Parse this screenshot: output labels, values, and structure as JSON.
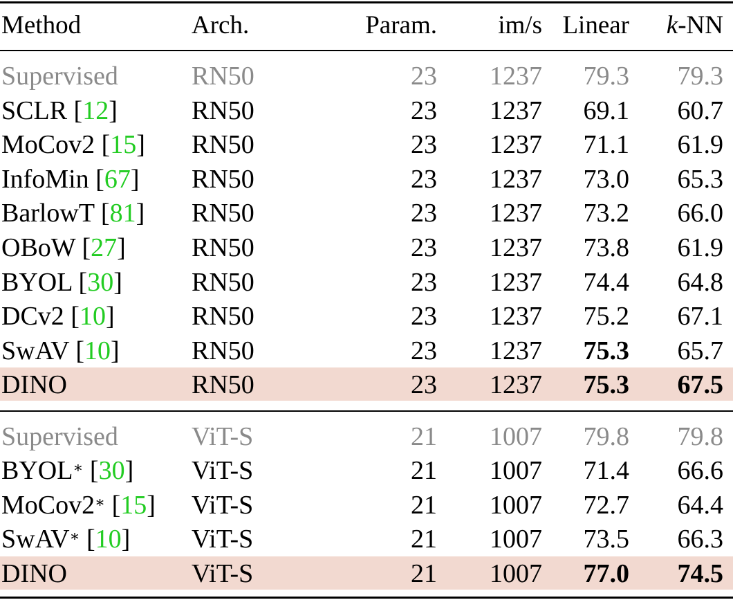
{
  "header": {
    "method": "Method",
    "arch": "Arch.",
    "param": "Param.",
    "ims": "im/s",
    "linear": "Linear",
    "knn_k": "k",
    "knn_rest": "-NN"
  },
  "rn50_rows": [
    {
      "method": "Supervised",
      "ref": "",
      "star": "",
      "arch": "RN50",
      "param": "23",
      "ims": "1237",
      "linear": "79.3",
      "knn": "79.3",
      "muted": true,
      "highlight": false,
      "linear_bold": false,
      "knn_bold": false
    },
    {
      "method": "SCLR",
      "ref": "12",
      "star": "",
      "arch": "RN50",
      "param": "23",
      "ims": "1237",
      "linear": "69.1",
      "knn": "60.7",
      "muted": false,
      "highlight": false,
      "linear_bold": false,
      "knn_bold": false
    },
    {
      "method": "MoCov2",
      "ref": "15",
      "star": "",
      "arch": "RN50",
      "param": "23",
      "ims": "1237",
      "linear": "71.1",
      "knn": "61.9",
      "muted": false,
      "highlight": false,
      "linear_bold": false,
      "knn_bold": false
    },
    {
      "method": "InfoMin",
      "ref": "67",
      "star": "",
      "arch": "RN50",
      "param": "23",
      "ims": "1237",
      "linear": "73.0",
      "knn": "65.3",
      "muted": false,
      "highlight": false,
      "linear_bold": false,
      "knn_bold": false
    },
    {
      "method": "BarlowT",
      "ref": "81",
      "star": "",
      "arch": "RN50",
      "param": "23",
      "ims": "1237",
      "linear": "73.2",
      "knn": "66.0",
      "muted": false,
      "highlight": false,
      "linear_bold": false,
      "knn_bold": false
    },
    {
      "method": "OBoW",
      "ref": "27",
      "star": "",
      "arch": "RN50",
      "param": "23",
      "ims": "1237",
      "linear": "73.8",
      "knn": "61.9",
      "muted": false,
      "highlight": false,
      "linear_bold": false,
      "knn_bold": false
    },
    {
      "method": "BYOL",
      "ref": "30",
      "star": "",
      "arch": "RN50",
      "param": "23",
      "ims": "1237",
      "linear": "74.4",
      "knn": "64.8",
      "muted": false,
      "highlight": false,
      "linear_bold": false,
      "knn_bold": false
    },
    {
      "method": "DCv2",
      "ref": "10",
      "star": "",
      "arch": "RN50",
      "param": "23",
      "ims": "1237",
      "linear": "75.2",
      "knn": "67.1",
      "muted": false,
      "highlight": false,
      "linear_bold": false,
      "knn_bold": false
    },
    {
      "method": "SwAV",
      "ref": "10",
      "star": "",
      "arch": "RN50",
      "param": "23",
      "ims": "1237",
      "linear": "75.3",
      "knn": "65.7",
      "muted": false,
      "highlight": false,
      "linear_bold": true,
      "knn_bold": false
    },
    {
      "method": "DINO",
      "ref": "",
      "star": "",
      "arch": "RN50",
      "param": "23",
      "ims": "1237",
      "linear": "75.3",
      "knn": "67.5",
      "muted": false,
      "highlight": true,
      "linear_bold": true,
      "knn_bold": true
    }
  ],
  "vit_rows": [
    {
      "method": "Supervised",
      "ref": "",
      "star": "",
      "arch": "ViT-S",
      "param": "21",
      "ims": "1007",
      "linear": "79.8",
      "knn": "79.8",
      "muted": true,
      "highlight": false,
      "linear_bold": false,
      "knn_bold": false
    },
    {
      "method": "BYOL",
      "ref": "30",
      "star": "∗",
      "arch": "ViT-S",
      "param": "21",
      "ims": "1007",
      "linear": "71.4",
      "knn": "66.6",
      "muted": false,
      "highlight": false,
      "linear_bold": false,
      "knn_bold": false
    },
    {
      "method": "MoCov2",
      "ref": "15",
      "star": "∗",
      "arch": "ViT-S",
      "param": "21",
      "ims": "1007",
      "linear": "72.7",
      "knn": "64.4",
      "muted": false,
      "highlight": false,
      "linear_bold": false,
      "knn_bold": false
    },
    {
      "method": "SwAV",
      "ref": "10",
      "star": "∗",
      "arch": "ViT-S",
      "param": "21",
      "ims": "1007",
      "linear": "73.5",
      "knn": "66.3",
      "muted": false,
      "highlight": false,
      "linear_bold": false,
      "knn_bold": false
    },
    {
      "method": "DINO",
      "ref": "",
      "star": "",
      "arch": "ViT-S",
      "param": "21",
      "ims": "1007",
      "linear": "77.0",
      "knn": "74.5",
      "muted": false,
      "highlight": true,
      "linear_bold": true,
      "knn_bold": true
    }
  ],
  "colors": {
    "highlight": "#f2d9d0",
    "muted_text": "#8a8a8a",
    "citation": "#22cc22"
  }
}
